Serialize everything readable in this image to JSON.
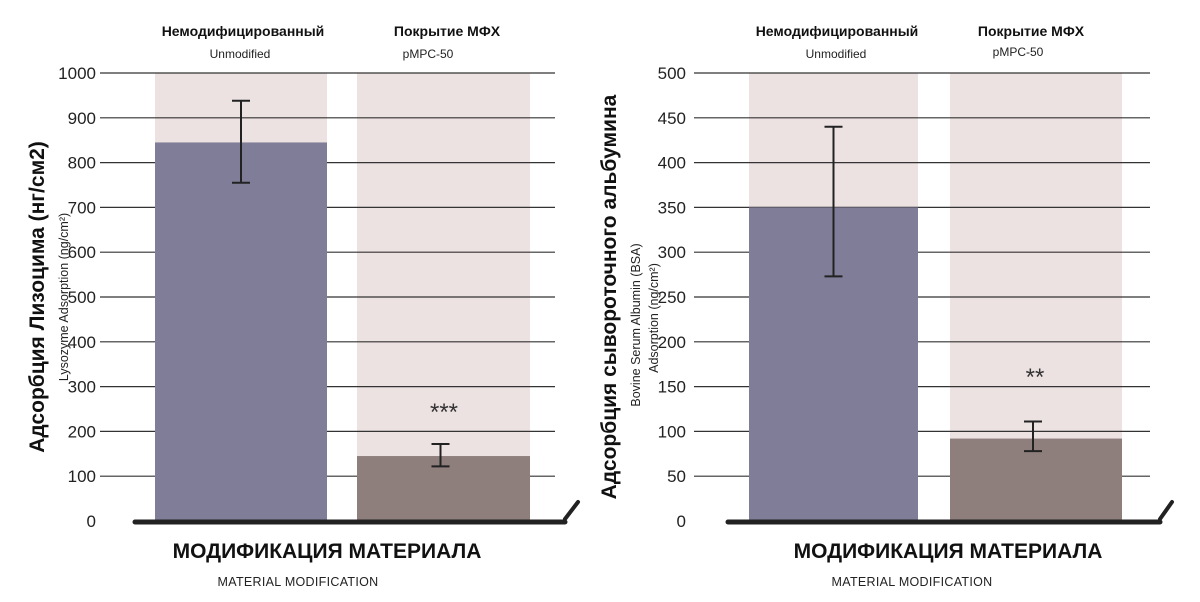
{
  "colors": {
    "background_band": "#ede2e2",
    "unmodified_bar": "#807d98",
    "coated_bar": "#8e7e7c",
    "grid": "#333333",
    "axis": "#222222"
  },
  "chart_data": [
    {
      "type": "bar",
      "categories": [
        "Unmodified",
        "pMPC-50"
      ],
      "category_labels": [
        {
          "main": "Немодифицированный",
          "sub": "Unmodified"
        },
        {
          "main": "Покрытие МФХ",
          "sub": "pMPC-50"
        }
      ],
      "values": [
        845,
        145
      ],
      "error": [
        [
          755,
          938
        ],
        [
          122,
          172
        ]
      ],
      "significance": [
        "",
        "***"
      ],
      "ylabel_main": "Адсорбция Лизоцима (нг/см2)",
      "ylabel_sub": "Lysozyme Adsorption (ng/cm²)",
      "xlabel_main": "МОДИФИКАЦИЯ МАТЕРИАЛА",
      "xlabel_sub": "MATERIAL MODIFICATION",
      "ylim": [
        0,
        1000
      ],
      "yticks": [
        "0",
        "100",
        "200",
        "300",
        "400",
        "500",
        "600",
        "700",
        "800",
        "900",
        "1000"
      ],
      "grid": true
    },
    {
      "type": "bar",
      "categories": [
        "Unmodified",
        "pMPC-50"
      ],
      "category_labels": [
        {
          "main": "Немодифицированный",
          "sub": "Unmodified"
        },
        {
          "main": "Покрытие МФХ",
          "sub": "pMPC-50"
        }
      ],
      "values": [
        350,
        92
      ],
      "error": [
        [
          273,
          440
        ],
        [
          78,
          111
        ]
      ],
      "significance": [
        "",
        "**"
      ],
      "ylabel_main": "Адсорбция сывороточного альбумина",
      "ylabel_sub_1": "Bovine Serum Albumin (BSA)",
      "ylabel_sub_2": "Adsorption (ng/cm²)",
      "xlabel_main": "МОДИФИКАЦИЯ МАТЕРИАЛА",
      "xlabel_sub": "MATERIAL MODIFICATION",
      "ylim": [
        0,
        500
      ],
      "yticks": [
        "0",
        "50",
        "100",
        "150",
        "200",
        "250",
        "300",
        "350",
        "400",
        "450",
        "500"
      ],
      "grid": true
    }
  ]
}
